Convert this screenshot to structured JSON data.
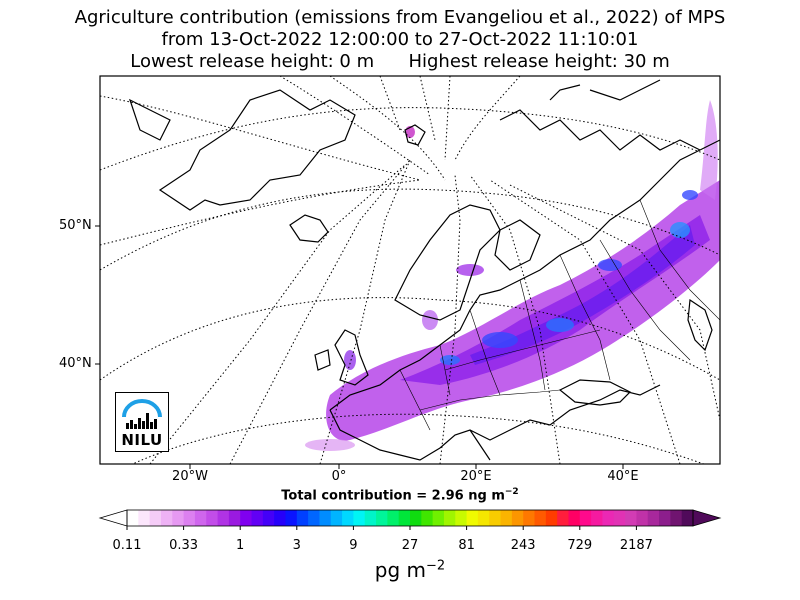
{
  "title": {
    "line1": "Agriculture contribution (emissions from Evangeliou et al., 2022) of MPS",
    "line2": "from 13-Oct-2022 12:00:00 to 27-Oct-2022 11:10:01",
    "line3": "Lowest release height: 0 m      Highest release height: 30 m"
  },
  "map": {
    "lat_labels": [
      "50°N",
      "40°N"
    ],
    "lon_labels": [
      "20°W",
      "0°",
      "20°E",
      "40°E"
    ],
    "colors": {
      "land_line": "#000000",
      "grid_line": "#000000"
    }
  },
  "total": {
    "prefix": "Total contribution = 2.96 ng m",
    "exponent": "−2"
  },
  "colorbar": {
    "tick_labels": [
      "0.11",
      "0.33",
      "1",
      "3",
      "9",
      "27",
      "81",
      "243",
      "729",
      "2187"
    ],
    "colors": [
      "#ffffff",
      "#fce6fc",
      "#f5ccf7",
      "#eeb2f5",
      "#e699f2",
      "#dc80f0",
      "#cf66ed",
      "#c24de9",
      "#b033e5",
      "#9a1ae0",
      "#8000f0",
      "#6200f5",
      "#4400f8",
      "#2600fa",
      "#0a14ff",
      "#0040ff",
      "#0066ff",
      "#008cff",
      "#00b4ff",
      "#00d8ff",
      "#00f5f5",
      "#00f5c8",
      "#00f59a",
      "#00f06a",
      "#00e63a",
      "#10dc10",
      "#40e600",
      "#70f000",
      "#a0f500",
      "#c8fa00",
      "#f0fa00",
      "#f5e600",
      "#f8cc00",
      "#fab400",
      "#fc9600",
      "#fe7800",
      "#ff5a00",
      "#ff3c00",
      "#ff1e3c",
      "#ff0064",
      "#ff0a8c",
      "#f51aa0",
      "#eb28b4",
      "#e132b4",
      "#d23cb4",
      "#c032a8",
      "#a8289c",
      "#8c1e8c",
      "#701470",
      "#500a5a"
    ],
    "unit": "pg m",
    "unit_exponent": "−2"
  },
  "logo": {
    "text": "NILU",
    "colors": {
      "arc": "#1ea0e6",
      "text": "#000000"
    }
  }
}
